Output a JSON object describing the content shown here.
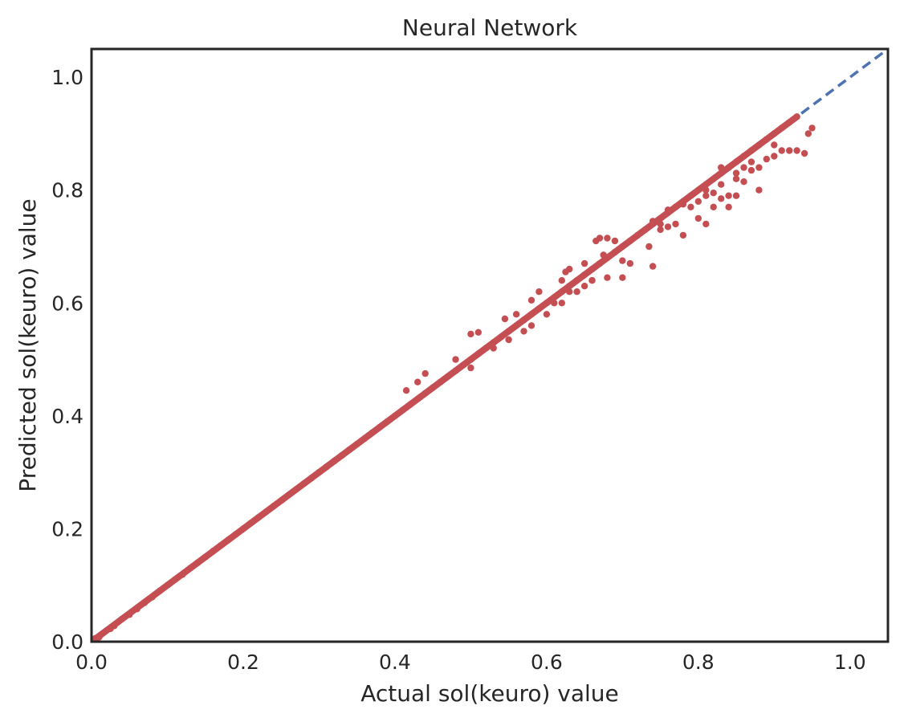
{
  "chart_data": {
    "type": "scatter",
    "title": "Neural Network",
    "xlabel": "Actual sol(keuro) value",
    "ylabel": "Predicted sol(keuro) value",
    "xlim": [
      0.0,
      1.05
    ],
    "ylim": [
      0.0,
      1.05
    ],
    "xticks": [
      "0.0",
      "0.2",
      "0.4",
      "0.6",
      "0.8",
      "1.0"
    ],
    "yticks": [
      "0.0",
      "0.2",
      "0.4",
      "0.6",
      "0.8",
      "1.0"
    ],
    "grid": false,
    "colors": {
      "points": "#c44e52",
      "reference_line": "#4c72b0",
      "frame": "#262626"
    },
    "reference_line": {
      "x": [
        0.0,
        1.05
      ],
      "y": [
        0.0,
        1.05
      ],
      "style": "dashed"
    },
    "series": [
      {
        "points": [
          [
            0.0,
            0.0
          ],
          [
            0.005,
            0.006
          ],
          [
            0.01,
            0.008
          ],
          [
            0.025,
            0.023
          ],
          [
            0.03,
            0.028
          ],
          [
            0.04,
            0.04
          ],
          [
            0.05,
            0.048
          ],
          [
            0.06,
            0.058
          ],
          [
            0.07,
            0.069
          ],
          [
            0.08,
            0.079
          ],
          [
            0.09,
            0.09
          ],
          [
            0.1,
            0.1
          ],
          [
            0.11,
            0.11
          ],
          [
            0.12,
            0.119
          ],
          [
            0.13,
            0.13
          ],
          [
            0.14,
            0.14
          ],
          [
            0.15,
            0.15
          ],
          [
            0.16,
            0.16
          ],
          [
            0.17,
            0.17
          ],
          [
            0.18,
            0.18
          ],
          [
            0.19,
            0.19
          ],
          [
            0.2,
            0.2
          ],
          [
            0.21,
            0.21
          ],
          [
            0.22,
            0.22
          ],
          [
            0.23,
            0.23
          ],
          [
            0.24,
            0.24
          ],
          [
            0.25,
            0.25
          ],
          [
            0.26,
            0.26
          ],
          [
            0.27,
            0.27
          ],
          [
            0.28,
            0.28
          ],
          [
            0.29,
            0.29
          ],
          [
            0.3,
            0.3
          ],
          [
            0.31,
            0.31
          ],
          [
            0.32,
            0.32
          ],
          [
            0.33,
            0.33
          ],
          [
            0.34,
            0.34
          ],
          [
            0.35,
            0.35
          ],
          [
            0.36,
            0.36
          ],
          [
            0.37,
            0.37
          ],
          [
            0.38,
            0.38
          ],
          [
            0.39,
            0.39
          ],
          [
            0.4,
            0.4
          ],
          [
            0.41,
            0.41
          ],
          [
            0.42,
            0.42
          ],
          [
            0.43,
            0.43
          ],
          [
            0.44,
            0.44
          ],
          [
            0.45,
            0.45
          ],
          [
            0.46,
            0.46
          ],
          [
            0.47,
            0.47
          ],
          [
            0.48,
            0.48
          ],
          [
            0.49,
            0.49
          ],
          [
            0.5,
            0.5
          ],
          [
            0.51,
            0.51
          ],
          [
            0.52,
            0.52
          ],
          [
            0.53,
            0.53
          ],
          [
            0.54,
            0.54
          ],
          [
            0.55,
            0.55
          ],
          [
            0.56,
            0.56
          ],
          [
            0.57,
            0.57
          ],
          [
            0.58,
            0.58
          ],
          [
            0.59,
            0.59
          ],
          [
            0.6,
            0.6
          ],
          [
            0.61,
            0.61
          ],
          [
            0.62,
            0.62
          ],
          [
            0.63,
            0.63
          ],
          [
            0.64,
            0.64
          ],
          [
            0.65,
            0.65
          ],
          [
            0.66,
            0.66
          ],
          [
            0.67,
            0.67
          ],
          [
            0.68,
            0.68
          ],
          [
            0.69,
            0.69
          ],
          [
            0.7,
            0.7
          ],
          [
            0.71,
            0.71
          ],
          [
            0.72,
            0.72
          ],
          [
            0.73,
            0.73
          ],
          [
            0.74,
            0.74
          ],
          [
            0.75,
            0.75
          ],
          [
            0.76,
            0.76
          ],
          [
            0.77,
            0.77
          ],
          [
            0.78,
            0.78
          ],
          [
            0.79,
            0.79
          ],
          [
            0.8,
            0.8
          ],
          [
            0.81,
            0.81
          ],
          [
            0.82,
            0.82
          ],
          [
            0.83,
            0.83
          ],
          [
            0.84,
            0.84
          ],
          [
            0.85,
            0.85
          ],
          [
            0.86,
            0.86
          ],
          [
            0.87,
            0.87
          ],
          [
            0.88,
            0.88
          ],
          [
            0.89,
            0.89
          ],
          [
            0.9,
            0.9
          ],
          [
            0.91,
            0.91
          ],
          [
            0.92,
            0.92
          ],
          [
            0.93,
            0.93
          ],
          [
            0.415,
            0.445
          ],
          [
            0.43,
            0.46
          ],
          [
            0.44,
            0.475
          ],
          [
            0.48,
            0.5
          ],
          [
            0.5,
            0.545
          ],
          [
            0.51,
            0.548
          ],
          [
            0.5,
            0.485
          ],
          [
            0.53,
            0.52
          ],
          [
            0.55,
            0.535
          ],
          [
            0.545,
            0.572
          ],
          [
            0.56,
            0.58
          ],
          [
            0.57,
            0.55
          ],
          [
            0.58,
            0.56
          ],
          [
            0.6,
            0.58
          ],
          [
            0.58,
            0.605
          ],
          [
            0.59,
            0.62
          ],
          [
            0.62,
            0.64
          ],
          [
            0.625,
            0.655
          ],
          [
            0.63,
            0.66
          ],
          [
            0.65,
            0.67
          ],
          [
            0.665,
            0.71
          ],
          [
            0.67,
            0.715
          ],
          [
            0.68,
            0.715
          ],
          [
            0.675,
            0.685
          ],
          [
            0.69,
            0.71
          ],
          [
            0.62,
            0.6
          ],
          [
            0.63,
            0.62
          ],
          [
            0.65,
            0.63
          ],
          [
            0.66,
            0.64
          ],
          [
            0.68,
            0.645
          ],
          [
            0.7,
            0.675
          ],
          [
            0.71,
            0.67
          ],
          [
            0.7,
            0.645
          ],
          [
            0.735,
            0.7
          ],
          [
            0.74,
            0.665
          ],
          [
            0.72,
            0.72
          ],
          [
            0.75,
            0.74
          ],
          [
            0.74,
            0.745
          ],
          [
            0.76,
            0.765
          ],
          [
            0.78,
            0.775
          ],
          [
            0.75,
            0.73
          ],
          [
            0.76,
            0.735
          ],
          [
            0.77,
            0.74
          ],
          [
            0.78,
            0.72
          ],
          [
            0.79,
            0.77
          ],
          [
            0.8,
            0.75
          ],
          [
            0.8,
            0.78
          ],
          [
            0.81,
            0.74
          ],
          [
            0.81,
            0.79
          ],
          [
            0.82,
            0.77
          ],
          [
            0.82,
            0.795
          ],
          [
            0.83,
            0.81
          ],
          [
            0.83,
            0.785
          ],
          [
            0.84,
            0.79
          ],
          [
            0.84,
            0.77
          ],
          [
            0.85,
            0.79
          ],
          [
            0.85,
            0.82
          ],
          [
            0.86,
            0.815
          ],
          [
            0.87,
            0.835
          ],
          [
            0.88,
            0.8
          ],
          [
            0.88,
            0.84
          ],
          [
            0.89,
            0.855
          ],
          [
            0.9,
            0.86
          ],
          [
            0.91,
            0.87
          ],
          [
            0.92,
            0.87
          ],
          [
            0.93,
            0.87
          ],
          [
            0.94,
            0.865
          ],
          [
            0.945,
            0.9
          ],
          [
            0.95,
            0.91
          ],
          [
            0.9,
            0.88
          ],
          [
            0.86,
            0.84
          ],
          [
            0.85,
            0.83
          ],
          [
            0.87,
            0.85
          ],
          [
            0.83,
            0.84
          ],
          [
            0.81,
            0.8
          ],
          [
            0.76,
            0.76
          ],
          [
            0.66,
            0.64
          ],
          [
            0.64,
            0.62
          ],
          [
            0.61,
            0.6
          ],
          [
            0.57,
            0.57
          ]
        ]
      }
    ]
  }
}
